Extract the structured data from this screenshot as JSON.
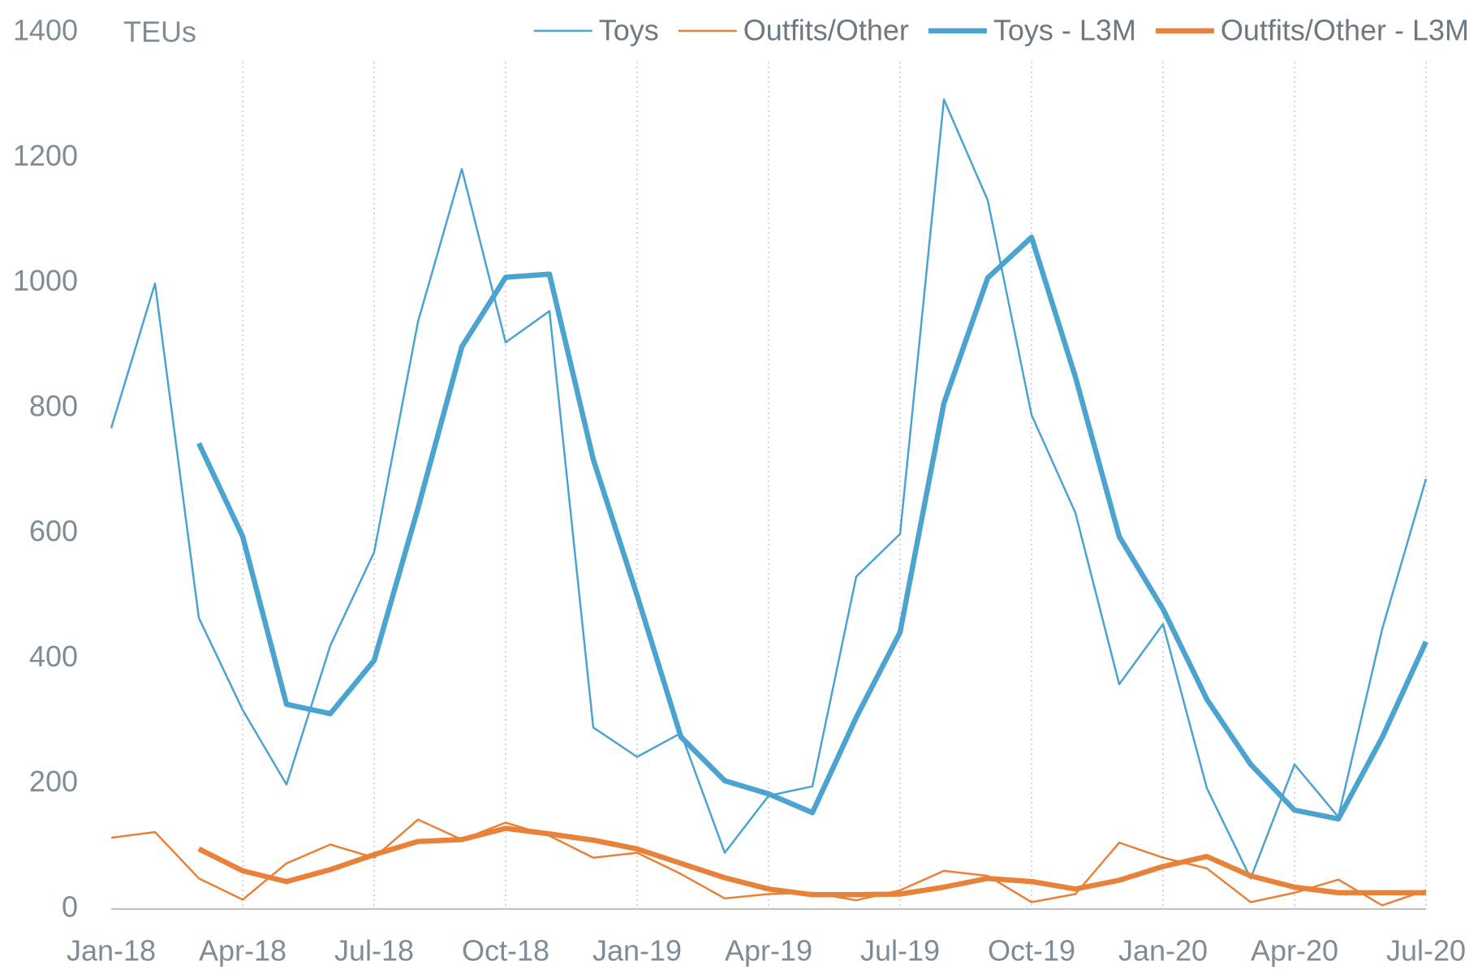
{
  "chart_data": {
    "type": "line",
    "y_unit": "TEUs",
    "categories": [
      "Jan-18",
      null,
      null,
      "Apr-18",
      null,
      null,
      "Jul-18",
      null,
      null,
      "Oct-18",
      null,
      null,
      "Jan-19",
      null,
      null,
      "Apr-19",
      null,
      null,
      "Jul-19",
      null,
      null,
      "Oct-19",
      null,
      null,
      "Jan-20",
      null,
      null,
      "Apr-20",
      null,
      null,
      "Jul-20"
    ],
    "series": [
      {
        "name": "Toys",
        "color": "#4ba3cf",
        "linewidth": 2.5,
        "values": [
          768,
          999,
          465,
          318,
          199,
          421,
          570,
          938,
          1182,
          905,
          955,
          290,
          243,
          281,
          90,
          181,
          196,
          531,
          599,
          1293,
          1132,
          789,
          633,
          359,
          455,
          193,
          49,
          231,
          147,
          447,
          687
        ]
      },
      {
        "name": "Outfits/Other",
        "color": "#e8823a",
        "linewidth": 2.5,
        "values": [
          114,
          123,
          49,
          15,
          73,
          103,
          82,
          143,
          111,
          138,
          117,
          82,
          90,
          56,
          17,
          24,
          26,
          14,
          30,
          61,
          53,
          11,
          24,
          106,
          82,
          65,
          11,
          26,
          47,
          6,
          30
        ]
      },
      {
        "name": "Toys - L3M",
        "color": "#4ba3cf",
        "linewidth": 6.5,
        "values": [
          null,
          null,
          744,
          595,
          327,
          312,
          397,
          640,
          898,
          1009,
          1014,
          718,
          501,
          275,
          205,
          184,
          154,
          306,
          442,
          808,
          1008,
          1073,
          850,
          595,
          479,
          335,
          231,
          158,
          144,
          274,
          427
        ]
      },
      {
        "name": "Outfits/Other - L3M",
        "color": "#e8823a",
        "linewidth": 6.5,
        "values": [
          null,
          null,
          96,
          61,
          44,
          63,
          87,
          108,
          111,
          129,
          120,
          110,
          96,
          73,
          50,
          32,
          23,
          23,
          24,
          35,
          49,
          44,
          32,
          46,
          68,
          84,
          53,
          35,
          26,
          26,
          26
        ]
      }
    ],
    "ylim": [
      0,
      1400
    ],
    "yticks": [
      0,
      200,
      400,
      600,
      800,
      1000,
      1200,
      1400
    ],
    "x_grid": true,
    "legend": "top-right"
  }
}
